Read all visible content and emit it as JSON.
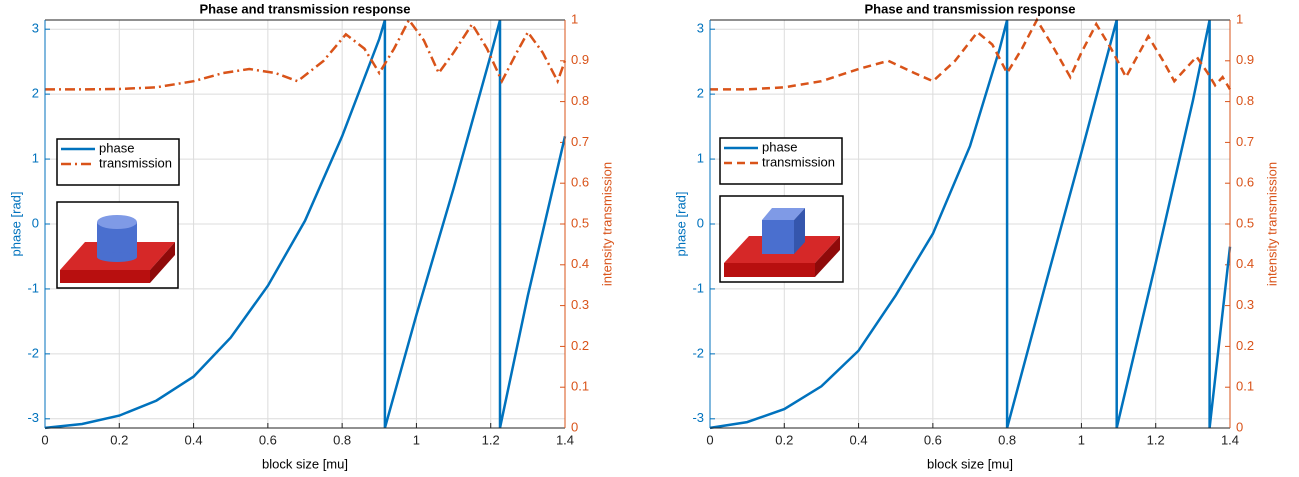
{
  "chart_data": [
    {
      "type": "line",
      "title": "Phase and transmission response",
      "xlabel": "block size [mu]",
      "ylabel": "phase [rad]",
      "y2label": "intensity transmission",
      "xlim": [
        0,
        1.4
      ],
      "xticks": [
        0,
        0.2,
        0.4,
        0.6,
        0.8,
        1,
        1.2,
        1.4
      ],
      "ylim": [
        -3.1416,
        3.1416
      ],
      "yticks": [
        -3,
        -2,
        -1,
        0,
        1,
        2,
        3
      ],
      "y2lim": [
        0,
        1
      ],
      "y2ticks": [
        0,
        0.1,
        0.2,
        0.3,
        0.4,
        0.5,
        0.6,
        0.7,
        0.8,
        0.9,
        1
      ],
      "grid": true,
      "legend": "upper left",
      "series": [
        {
          "name": "phase",
          "color": "#0072bd",
          "linestyle": "-",
          "x": [
            0,
            0.1,
            0.2,
            0.3,
            0.4,
            0.5,
            0.6,
            0.7,
            0.8,
            0.9,
            0.915,
            0.915,
            1.0,
            1.1,
            1.2,
            1.225,
            1.225,
            1.3,
            1.4
          ],
          "values": [
            -3.14,
            -3.08,
            -2.95,
            -2.72,
            -2.35,
            -1.75,
            -0.95,
            0.05,
            1.35,
            2.85,
            3.14,
            -3.14,
            -1.4,
            0.55,
            2.6,
            3.14,
            -3.14,
            -1.1,
            1.35
          ]
        },
        {
          "name": "transmission",
          "color": "#d95319",
          "linestyle": "-.",
          "axis": "y2",
          "x": [
            0,
            0.1,
            0.2,
            0.3,
            0.4,
            0.48,
            0.55,
            0.62,
            0.68,
            0.75,
            0.81,
            0.86,
            0.9,
            0.94,
            0.98,
            1.02,
            1.06,
            1.1,
            1.15,
            1.19,
            1.23,
            1.27,
            1.3,
            1.34,
            1.38,
            1.4
          ],
          "values": [
            0.83,
            0.83,
            0.831,
            0.835,
            0.85,
            0.87,
            0.88,
            0.87,
            0.85,
            0.9,
            0.965,
            0.93,
            0.87,
            0.93,
            1.0,
            0.95,
            0.87,
            0.92,
            0.99,
            0.93,
            0.85,
            0.92,
            0.97,
            0.92,
            0.85,
            0.9
          ]
        }
      ]
    },
    {
      "type": "line",
      "title": "Phase and transmission response",
      "xlabel": "block size [mu]",
      "ylabel": "phase [rad]",
      "y2label": "intensity transmission",
      "xlim": [
        0,
        1.4
      ],
      "xticks": [
        0,
        0.2,
        0.4,
        0.6,
        0.8,
        1,
        1.2,
        1.4
      ],
      "ylim": [
        -3.1416,
        3.1416
      ],
      "yticks": [
        -3,
        -2,
        -1,
        0,
        1,
        2,
        3
      ],
      "y2lim": [
        0,
        1
      ],
      "y2ticks": [
        0,
        0.1,
        0.2,
        0.3,
        0.4,
        0.5,
        0.6,
        0.7,
        0.8,
        0.9,
        1
      ],
      "grid": true,
      "legend": "upper left",
      "series": [
        {
          "name": "phase",
          "color": "#0072bd",
          "linestyle": "-",
          "x": [
            0,
            0.1,
            0.2,
            0.3,
            0.4,
            0.5,
            0.6,
            0.7,
            0.78,
            0.8,
            0.8,
            0.9,
            1.0,
            1.095,
            1.095,
            1.2,
            1.3,
            1.345,
            1.345,
            1.4
          ],
          "values": [
            -3.14,
            -3.05,
            -2.85,
            -2.5,
            -1.95,
            -1.1,
            -0.15,
            1.2,
            2.7,
            3.14,
            -3.14,
            -1.0,
            1.1,
            3.14,
            -3.14,
            -0.6,
            1.9,
            3.14,
            -3.14,
            -0.35
          ]
        },
        {
          "name": "transmission",
          "color": "#d95319",
          "linestyle": "--",
          "axis": "y2",
          "x": [
            0,
            0.1,
            0.2,
            0.3,
            0.4,
            0.48,
            0.55,
            0.6,
            0.66,
            0.72,
            0.76,
            0.8,
            0.84,
            0.88,
            0.92,
            0.97,
            1.0,
            1.04,
            1.08,
            1.12,
            1.15,
            1.18,
            1.22,
            1.25,
            1.28,
            1.31,
            1.34,
            1.36,
            1.38,
            1.4
          ],
          "values": [
            0.83,
            0.83,
            0.835,
            0.85,
            0.88,
            0.9,
            0.87,
            0.85,
            0.9,
            0.97,
            0.94,
            0.87,
            0.93,
            1.0,
            0.94,
            0.86,
            0.92,
            0.99,
            0.93,
            0.86,
            0.91,
            0.96,
            0.9,
            0.85,
            0.88,
            0.91,
            0.87,
            0.84,
            0.86,
            0.83
          ]
        }
      ]
    }
  ]
}
